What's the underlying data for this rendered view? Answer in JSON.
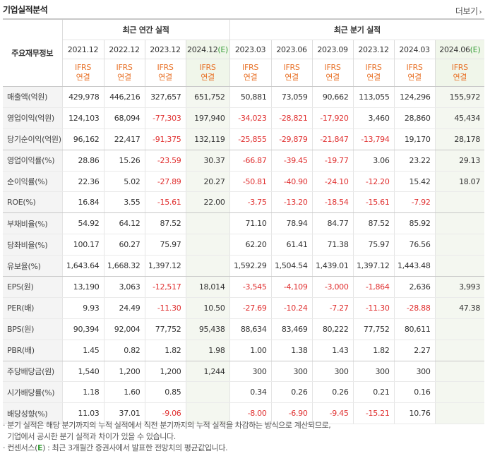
{
  "page": {
    "title": "기업실적분석",
    "more_label": "더보기"
  },
  "header": {
    "label_col": "주요재무정보",
    "annual_group": "최근 연간 실적",
    "quarter_group": "최근 분기 실적",
    "periods": [
      {
        "label": "2021.12",
        "est": false
      },
      {
        "label": "2022.12",
        "est": false
      },
      {
        "label": "2023.12",
        "est": false
      },
      {
        "label": "2024.12",
        "est": true,
        "suffix": "(E)"
      },
      {
        "label": "2023.03",
        "est": false
      },
      {
        "label": "2023.06",
        "est": false
      },
      {
        "label": "2023.09",
        "est": false
      },
      {
        "label": "2023.12",
        "est": false
      },
      {
        "label": "2024.03",
        "est": false
      },
      {
        "label": "2024.06",
        "est": true,
        "suffix": "(E)"
      }
    ],
    "basis_line1": "IFRS",
    "basis_line2": "연결"
  },
  "rows": [
    {
      "label": "매출액(억원)",
      "values": [
        "429,978",
        "446,216",
        "327,657",
        "651,752",
        "50,881",
        "73,059",
        "90,662",
        "113,055",
        "124,296",
        "155,972"
      ]
    },
    {
      "label": "영업이익(억원)",
      "values": [
        "124,103",
        "68,094",
        "-77,303",
        "197,940",
        "-34,023",
        "-28,821",
        "-17,920",
        "3,460",
        "28,860",
        "45,434"
      ]
    },
    {
      "label": "당기순이익(억원)",
      "values": [
        "96,162",
        "22,417",
        "-91,375",
        "132,119",
        "-25,855",
        "-29,879",
        "-21,847",
        "-13,794",
        "19,170",
        "28,178"
      ],
      "group_end": true
    },
    {
      "label": "영업이익률(%)",
      "values": [
        "28.86",
        "15.26",
        "-23.59",
        "30.37",
        "-66.87",
        "-39.45",
        "-19.77",
        "3.06",
        "23.22",
        "29.13"
      ]
    },
    {
      "label": "순이익률(%)",
      "values": [
        "22.36",
        "5.02",
        "-27.89",
        "20.27",
        "-50.81",
        "-40.90",
        "-24.10",
        "-12.20",
        "15.42",
        "18.07"
      ]
    },
    {
      "label": "ROE(%)",
      "values": [
        "16.84",
        "3.55",
        "-15.61",
        "22.00",
        "-3.75",
        "-13.20",
        "-18.54",
        "-15.61",
        "-7.92",
        ""
      ],
      "group_end": true
    },
    {
      "label": "부채비율(%)",
      "values": [
        "54.92",
        "64.12",
        "87.52",
        "",
        "71.10",
        "78.94",
        "84.77",
        "87.52",
        "85.92",
        ""
      ]
    },
    {
      "label": "당좌비율(%)",
      "values": [
        "100.17",
        "60.27",
        "75.97",
        "",
        "62.20",
        "61.41",
        "71.38",
        "75.97",
        "76.56",
        ""
      ]
    },
    {
      "label": "유보율(%)",
      "values": [
        "1,643.64",
        "1,668.32",
        "1,397.12",
        "",
        "1,592.29",
        "1,504.54",
        "1,439.01",
        "1,397.12",
        "1,443.48",
        ""
      ],
      "group_end": true
    },
    {
      "label": "EPS(원)",
      "values": [
        "13,190",
        "3,063",
        "-12,517",
        "18,014",
        "-3,545",
        "-4,109",
        "-3,000",
        "-1,864",
        "2,636",
        "3,993"
      ]
    },
    {
      "label": "PER(배)",
      "values": [
        "9.93",
        "24.49",
        "-11.30",
        "10.50",
        "-27.69",
        "-10.24",
        "-7.27",
        "-11.30",
        "-28.88",
        "47.38"
      ]
    },
    {
      "label": "BPS(원)",
      "values": [
        "90,394",
        "92,004",
        "77,752",
        "95,438",
        "88,634",
        "83,469",
        "80,222",
        "77,752",
        "80,611",
        ""
      ]
    },
    {
      "label": "PBR(배)",
      "values": [
        "1.45",
        "0.82",
        "1.82",
        "1.98",
        "1.00",
        "1.38",
        "1.43",
        "1.82",
        "2.27",
        ""
      ],
      "group_end": true
    },
    {
      "label": "주당배당금(원)",
      "values": [
        "1,540",
        "1,200",
        "1,200",
        "1,244",
        "300",
        "300",
        "300",
        "300",
        "300",
        ""
      ]
    },
    {
      "label": "시가배당률(%)",
      "values": [
        "1.18",
        "1.60",
        "0.85",
        "",
        "0.34",
        "0.26",
        "0.26",
        "0.21",
        "0.16",
        ""
      ]
    },
    {
      "label": "배당성향(%)",
      "values": [
        "11.03",
        "37.01",
        "-9.06",
        "",
        "-8.00",
        "-6.90",
        "-9.45",
        "-15.21",
        "10.76",
        ""
      ]
    }
  ],
  "notes": {
    "line1": "· 분기 실적은 해당 분기까지의 누적 실적에서 직전 분기까지의 누적 실적을 차감하는 방식으로 계산되므로,",
    "line2": "  기업에서 공시한 분기 실적과 차이가 있을 수 있습니다.",
    "line3_prefix": "· 컨센서스(",
    "line3_e": "E",
    "line3_suffix": ") : 최근 3개월간 증권사에서 발표한 전망치의 평균값입니다."
  }
}
